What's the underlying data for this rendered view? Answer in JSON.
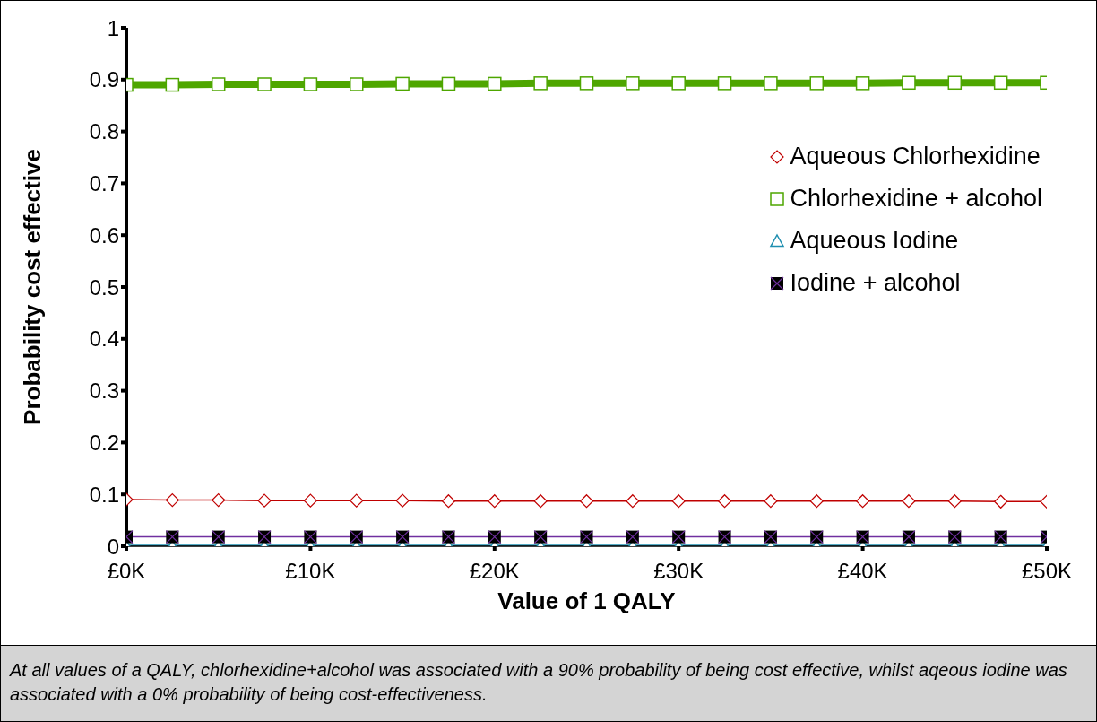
{
  "chart_data": {
    "type": "line",
    "xlabel": "Value of 1 QALY",
    "ylabel": "Probability cost effective",
    "x": [
      0,
      2500,
      5000,
      7500,
      10000,
      12500,
      15000,
      17500,
      20000,
      22500,
      25000,
      27500,
      30000,
      32500,
      35000,
      37500,
      40000,
      42500,
      45000,
      47500,
      50000
    ],
    "series": [
      {
        "name": "Aqueous Chlorhexidine",
        "color": "#c00000",
        "marker": "diamond",
        "values": [
          0.09,
          0.089,
          0.089,
          0.088,
          0.088,
          0.088,
          0.088,
          0.087,
          0.087,
          0.087,
          0.087,
          0.087,
          0.087,
          0.087,
          0.087,
          0.087,
          0.087,
          0.087,
          0.087,
          0.086,
          0.086
        ]
      },
      {
        "name": "Chlorhexidine + alcohol",
        "color": "#4ea600",
        "marker": "square",
        "values": [
          0.89,
          0.89,
          0.891,
          0.891,
          0.891,
          0.891,
          0.892,
          0.892,
          0.892,
          0.893,
          0.893,
          0.893,
          0.893,
          0.893,
          0.893,
          0.893,
          0.893,
          0.894,
          0.894,
          0.894,
          0.894
        ]
      },
      {
        "name": "Aqueous Iodine",
        "color": "#1f8fb0",
        "marker": "triangle",
        "values": [
          0,
          0,
          0,
          0,
          0,
          0,
          0,
          0,
          0,
          0,
          0,
          0,
          0,
          0,
          0,
          0,
          0,
          0,
          0,
          0,
          0
        ]
      },
      {
        "name": "Iodine + alcohol",
        "color": "#7030a0",
        "marker": "cross",
        "values": [
          0.018,
          0.018,
          0.018,
          0.018,
          0.018,
          0.018,
          0.018,
          0.018,
          0.018,
          0.018,
          0.018,
          0.018,
          0.018,
          0.018,
          0.018,
          0.018,
          0.018,
          0.018,
          0.018,
          0.018,
          0.018
        ]
      }
    ],
    "xlim": [
      0,
      50000
    ],
    "xticks": [
      {
        "value": 0,
        "label": "£0K"
      },
      {
        "value": 10000,
        "label": "£10K"
      },
      {
        "value": 20000,
        "label": "£20K"
      },
      {
        "value": 30000,
        "label": "£30K"
      },
      {
        "value": 40000,
        "label": "£40K"
      },
      {
        "value": 50000,
        "label": "£50K"
      }
    ],
    "ylim": [
      0,
      1
    ],
    "yticks": [
      0,
      0.1,
      0.2,
      0.3,
      0.4,
      0.5,
      0.6,
      0.7,
      0.8,
      0.9,
      1
    ],
    "grid": false,
    "legend": "right",
    "annotations": [
      "At all values of a QALY, chlorhexidine+alcohol was associated with a 90% probability of being cost effective, whilst aqeous iodine was associated with a 0% probability of being cost-effectiveness."
    ]
  }
}
